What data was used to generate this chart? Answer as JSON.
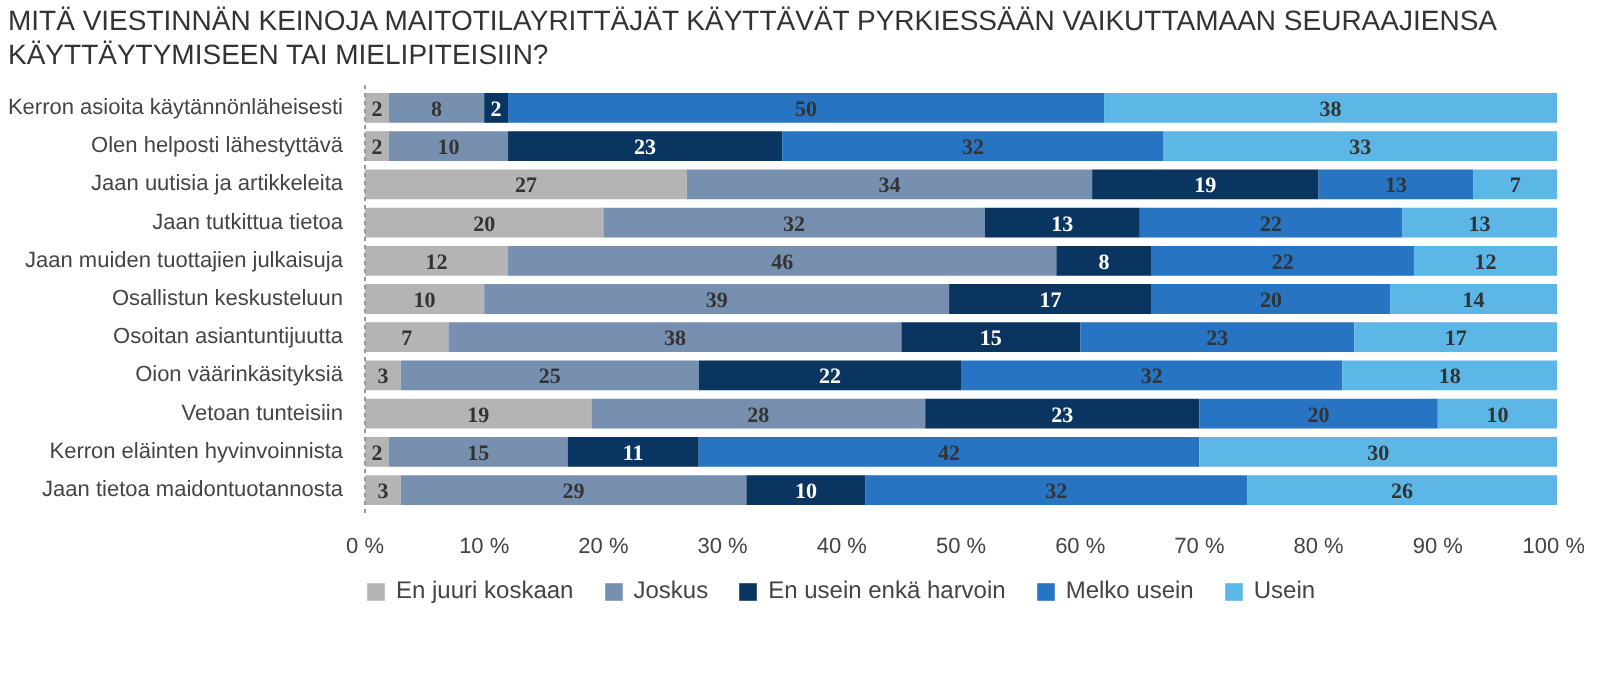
{
  "chart_data": {
    "type": "bar",
    "orientation": "horizontal",
    "stacked": true,
    "data_labels": true,
    "grid": false,
    "legend": "bottom",
    "title": "MITÄ VIESTINNÄN KEINOJA MAITOTILAYRITTÄJÄT KÄYTTÄVÄT PYRKIESSÄÄN VAIKUTTAMAAN SEURAAJIENSA\nKÄYTTÄYTYMISEEN TAI MIELIPITEISIIN?",
    "categories": [
      "Kerron asioita käytännönläheisesti",
      "Olen helposti lähestyttävä",
      "Jaan uutisia ja artikkeleita",
      "Jaan tutkittua tietoa",
      "Jaan muiden tuottajien julkaisuja",
      "Osallistun keskusteluun",
      "Osoitan asiantuntijuutta",
      "Oion väärinkäsityksiä",
      "Vetoan tunteisiin",
      "Kerron eläinten hyvinvoinnista",
      "Jaan tietoa maidontuotannosta"
    ],
    "xlim": [
      0,
      100
    ],
    "xticks": [
      {
        "value": 0,
        "label": "0 %"
      },
      {
        "value": 10,
        "label": "10 %"
      },
      {
        "value": 20,
        "label": "20 %"
      },
      {
        "value": 30,
        "label": "30 %"
      },
      {
        "value": 40,
        "label": "40 %"
      },
      {
        "value": 50,
        "label": "50 %"
      },
      {
        "value": 60,
        "label": "60 %"
      },
      {
        "value": 70,
        "label": "70 %"
      },
      {
        "value": 80,
        "label": "80 %"
      },
      {
        "value": 90,
        "label": "90 %"
      },
      {
        "value": 100,
        "label": "100 %"
      }
    ],
    "series": [
      {
        "name": "En juuri koskaan",
        "color": "#b4b4b4",
        "values": [
          2,
          2,
          27,
          20,
          12,
          10,
          7,
          3,
          19,
          2,
          3
        ]
      },
      {
        "name": "Joskus",
        "color": "#7890b0",
        "values": [
          8,
          10,
          34,
          32,
          46,
          39,
          38,
          25,
          28,
          15,
          29
        ]
      },
      {
        "name": "En usein enkä harvoin",
        "color": "#0b3561",
        "values": [
          2,
          23,
          19,
          13,
          8,
          17,
          15,
          22,
          23,
          11,
          10
        ]
      },
      {
        "name": "Melko usein",
        "color": "#2774c2",
        "values": [
          50,
          32,
          13,
          22,
          22,
          20,
          23,
          32,
          20,
          42,
          32
        ]
      },
      {
        "name": "Usein",
        "color": "#5cb6e6",
        "values": [
          38,
          33,
          7,
          13,
          12,
          14,
          17,
          18,
          10,
          30,
          26
        ]
      }
    ]
  }
}
